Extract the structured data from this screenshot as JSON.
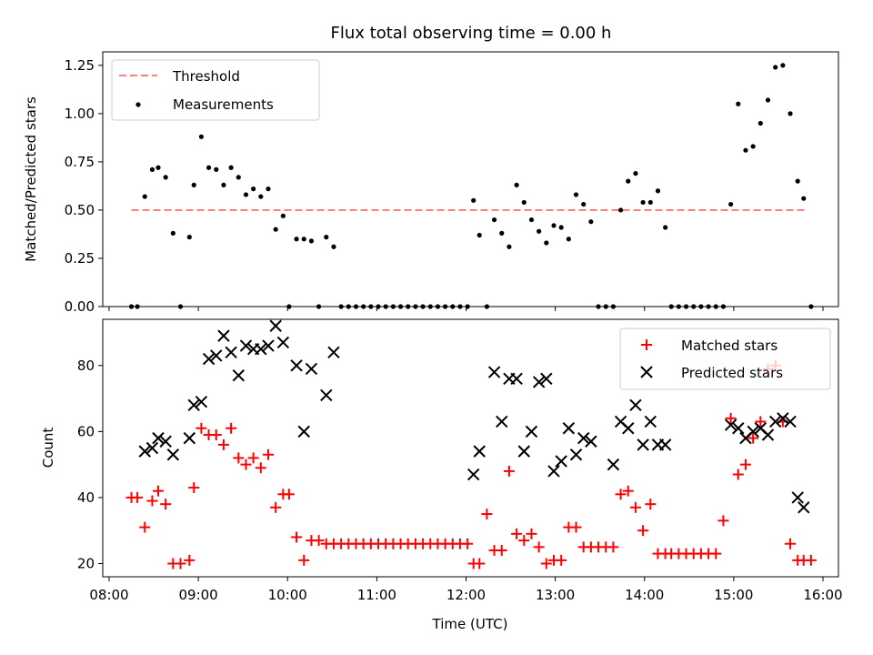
{
  "title": "Flux total observing time = 0.00 h",
  "colors": {
    "threshold": "#ff7f7f",
    "measurements": "#000000",
    "matched": "#ff0000",
    "predicted": "#000000"
  },
  "chart_data": [
    {
      "type": "scatter",
      "ylabel": "Matched/Predicted stars",
      "xlim": [
        "08:00",
        "16:00"
      ],
      "ylim": [
        0,
        1.32
      ],
      "yticks": [
        "0.00",
        "0.25",
        "0.50",
        "0.75",
        "1.00",
        "1.25"
      ],
      "legend": "top-left",
      "threshold": {
        "name": "Threshold",
        "value": 0.5,
        "x_range": [
          "08:15",
          "15:50"
        ]
      },
      "series": [
        {
          "name": "Measurements",
          "x": [
            "08:15",
            "08:19",
            "08:24",
            "08:29",
            "08:33",
            "08:38",
            "08:43",
            "08:48",
            "08:54",
            "08:57",
            "09:02",
            "09:07",
            "09:12",
            "09:17",
            "09:22",
            "09:27",
            "09:32",
            "09:37",
            "09:42",
            "09:47",
            "09:52",
            "09:57",
            "10:01",
            "10:06",
            "10:11",
            "10:16",
            "10:21",
            "10:26",
            "10:31",
            "10:36",
            "10:41",
            "10:46",
            "10:51",
            "10:56",
            "11:01",
            "11:06",
            "11:11",
            "11:16",
            "11:21",
            "11:26",
            "11:31",
            "11:36",
            "11:41",
            "11:46",
            "11:51",
            "11:56",
            "12:01",
            "12:05",
            "12:09",
            "12:14",
            "12:19",
            "12:24",
            "12:29",
            "12:34",
            "12:39",
            "12:44",
            "12:49",
            "12:54",
            "12:59",
            "13:04",
            "13:09",
            "13:14",
            "13:19",
            "13:24",
            "13:29",
            "13:34",
            "13:39",
            "13:44",
            "13:49",
            "13:54",
            "13:59",
            "14:04",
            "14:09",
            "14:14",
            "14:18",
            "14:23",
            "14:28",
            "14:33",
            "14:38",
            "14:43",
            "14:48",
            "14:53",
            "14:58",
            "15:03",
            "15:08",
            "15:13",
            "15:18",
            "15:23",
            "15:28",
            "15:33",
            "15:38",
            "15:43",
            "15:47",
            "15:52"
          ],
          "y": [
            0,
            0,
            0.57,
            0.71,
            0.72,
            0.67,
            0.38,
            0,
            0.36,
            0.63,
            0.88,
            0.72,
            0.71,
            0.63,
            0.72,
            0.67,
            0.58,
            0.61,
            0.57,
            0.61,
            0.4,
            0.47,
            0,
            0.35,
            0.35,
            0.34,
            0,
            0.36,
            0.31,
            0,
            0,
            0,
            0,
            0,
            0,
            0,
            0,
            0,
            0,
            0,
            0,
            0,
            0,
            0,
            0,
            0,
            0,
            0.55,
            0.37,
            0,
            0.45,
            0.38,
            0.31,
            0.63,
            0.54,
            0.45,
            0.39,
            0.33,
            0.42,
            0.41,
            0.35,
            0.58,
            0.53,
            0.44,
            0,
            0,
            0,
            0.5,
            0.65,
            0.69,
            0.54,
            0.54,
            0.6,
            0.41,
            0,
            0,
            0,
            0,
            0,
            0,
            0,
            0,
            0.53,
            1.05,
            0.81,
            0.83,
            0.95,
            1.07,
            1.24,
            1.25,
            1.0,
            0.65,
            0.56,
            0
          ]
        }
      ]
    },
    {
      "type": "scatter",
      "xlabel": "Time (UTC)",
      "ylabel": "Count",
      "xlim": [
        "08:00",
        "16:00"
      ],
      "ylim": [
        16,
        94
      ],
      "yticks": [
        "20",
        "40",
        "60",
        "80"
      ],
      "xticks": [
        "08:00",
        "09:00",
        "10:00",
        "11:00",
        "12:00",
        "13:00",
        "14:00",
        "15:00",
        "16:00"
      ],
      "legend": "top-right",
      "series": [
        {
          "name": "Matched stars",
          "marker": "plus",
          "x": [
            "08:15",
            "08:19",
            "08:24",
            "08:29",
            "08:33",
            "08:38",
            "08:43",
            "08:48",
            "08:54",
            "08:57",
            "09:02",
            "09:07",
            "09:12",
            "09:17",
            "09:22",
            "09:27",
            "09:32",
            "09:37",
            "09:42",
            "09:47",
            "09:52",
            "09:57",
            "10:01",
            "10:06",
            "10:11",
            "10:16",
            "10:21",
            "10:26",
            "10:31",
            "10:36",
            "10:41",
            "10:46",
            "10:51",
            "10:56",
            "11:01",
            "11:06",
            "11:11",
            "11:16",
            "11:21",
            "11:26",
            "11:31",
            "11:36",
            "11:41",
            "11:46",
            "11:51",
            "11:56",
            "12:01",
            "12:05",
            "12:09",
            "12:14",
            "12:19",
            "12:24",
            "12:29",
            "12:34",
            "12:39",
            "12:44",
            "12:49",
            "12:54",
            "12:59",
            "13:04",
            "13:09",
            "13:14",
            "13:19",
            "13:24",
            "13:29",
            "13:34",
            "13:39",
            "13:44",
            "13:49",
            "13:54",
            "13:59",
            "14:04",
            "14:09",
            "14:14",
            "14:18",
            "14:23",
            "14:28",
            "14:33",
            "14:38",
            "14:43",
            "14:48",
            "14:53",
            "14:58",
            "15:03",
            "15:08",
            "15:13",
            "15:18",
            "15:23",
            "15:28",
            "15:33",
            "15:38",
            "15:43",
            "15:47",
            "15:52"
          ],
          "y": [
            40,
            40,
            31,
            39,
            42,
            38,
            20,
            20,
            21,
            43,
            61,
            59,
            59,
            56,
            61,
            52,
            50,
            52,
            49,
            53,
            37,
            41,
            41,
            28,
            21,
            27,
            27,
            26,
            26,
            26,
            26,
            26,
            26,
            26,
            26,
            26,
            26,
            26,
            26,
            26,
            26,
            26,
            26,
            26,
            26,
            26,
            26,
            20,
            20,
            35,
            24,
            24,
            48,
            29,
            27,
            29,
            25,
            20,
            21,
            21,
            31,
            31,
            25,
            25,
            25,
            25,
            25,
            41,
            42,
            37,
            30,
            38,
            23,
            23,
            23,
            23,
            23,
            23,
            23,
            23,
            23,
            33,
            64,
            47,
            50,
            58,
            63,
            79,
            80,
            63,
            26,
            21,
            21,
            21
          ]
        },
        {
          "name": "Predicted stars",
          "marker": "x",
          "x": [
            "08:24",
            "08:29",
            "08:33",
            "08:38",
            "08:43",
            "08:54",
            "08:57",
            "09:02",
            "09:07",
            "09:12",
            "09:17",
            "09:22",
            "09:27",
            "09:32",
            "09:37",
            "09:42",
            "09:47",
            "09:52",
            "09:57",
            "10:06",
            "10:11",
            "10:16",
            "10:26",
            "10:31",
            "12:05",
            "12:09",
            "12:19",
            "12:24",
            "12:29",
            "12:34",
            "12:39",
            "12:44",
            "12:49",
            "12:54",
            "12:59",
            "13:04",
            "13:09",
            "13:14",
            "13:19",
            "13:24",
            "13:39",
            "13:44",
            "13:49",
            "13:54",
            "13:59",
            "14:04",
            "14:09",
            "14:14",
            "14:58",
            "15:03",
            "15:08",
            "15:13",
            "15:18",
            "15:23",
            "15:28",
            "15:33",
            "15:38",
            "15:43",
            "15:47"
          ],
          "y": [
            54,
            55,
            58,
            57,
            53,
            58,
            68,
            69,
            82,
            83,
            89,
            84,
            77,
            86,
            85,
            85,
            86,
            92,
            87,
            80,
            60,
            79,
            71,
            84,
            47,
            54,
            78,
            63,
            76,
            76,
            54,
            60,
            75,
            76,
            48,
            51,
            61,
            53,
            58,
            57,
            50,
            63,
            61,
            68,
            56,
            63,
            56,
            56,
            62,
            61,
            58,
            60,
            61,
            59,
            63,
            64,
            63,
            40,
            37
          ]
        }
      ]
    }
  ]
}
